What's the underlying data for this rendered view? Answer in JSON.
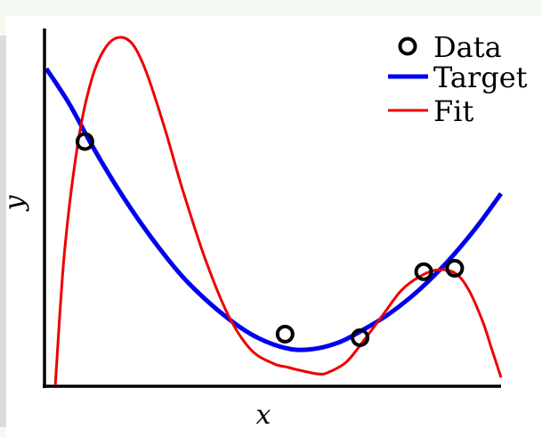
{
  "chart_data": {
    "type": "line",
    "xlabel": "x",
    "ylabel": "y",
    "xlim": [
      0,
      1
    ],
    "ylim": [
      0,
      1
    ],
    "grid": false,
    "legend_position": "top-right",
    "legend": [
      {
        "label": "Data",
        "kind": "marker",
        "color": "#000000"
      },
      {
        "label": "Target",
        "kind": "line",
        "color": "#0000ee"
      },
      {
        "label": "Fit",
        "kind": "line",
        "color": "#ee0000"
      }
    ],
    "points": [
      {
        "x": 0.085,
        "y": 0.7
      },
      {
        "x": 0.525,
        "y": 0.145
      },
      {
        "x": 0.69,
        "y": 0.135
      },
      {
        "x": 0.83,
        "y": 0.325
      },
      {
        "x": 0.898,
        "y": 0.335
      }
    ],
    "series": [
      {
        "name": "Target",
        "color": "#0000ee",
        "x": [
          0,
          0.05,
          0.1,
          0.15,
          0.2,
          0.25,
          0.3,
          0.35,
          0.4,
          0.45,
          0.5,
          0.55,
          0.6,
          0.65,
          0.7,
          0.75,
          0.8,
          0.85,
          0.9,
          0.95,
          1.0
        ],
        "y": [
          0.91,
          0.81,
          0.69,
          0.58,
          0.48,
          0.39,
          0.31,
          0.245,
          0.19,
          0.145,
          0.115,
          0.1,
          0.105,
          0.125,
          0.16,
          0.2,
          0.25,
          0.31,
          0.38,
          0.46,
          0.55
        ]
      },
      {
        "name": "Fit",
        "color": "#ee0000",
        "x": [
          0.02,
          0.04,
          0.07,
          0.1,
          0.13,
          0.16,
          0.19,
          0.22,
          0.26,
          0.3,
          0.35,
          0.4,
          0.45,
          0.5,
          0.53,
          0.56,
          0.6,
          0.62,
          0.66,
          0.7,
          0.74,
          0.78,
          0.82,
          0.86,
          0.9,
          0.93,
          0.96,
          0.98,
          1.0
        ],
        "y": [
          0.0,
          0.38,
          0.7,
          0.88,
          0.97,
          1.0,
          0.98,
          0.9,
          0.74,
          0.56,
          0.36,
          0.2,
          0.1,
          0.06,
          0.05,
          0.04,
          0.03,
          0.035,
          0.065,
          0.13,
          0.2,
          0.27,
          0.31,
          0.33,
          0.32,
          0.27,
          0.18,
          0.1,
          0.02
        ]
      }
    ]
  }
}
